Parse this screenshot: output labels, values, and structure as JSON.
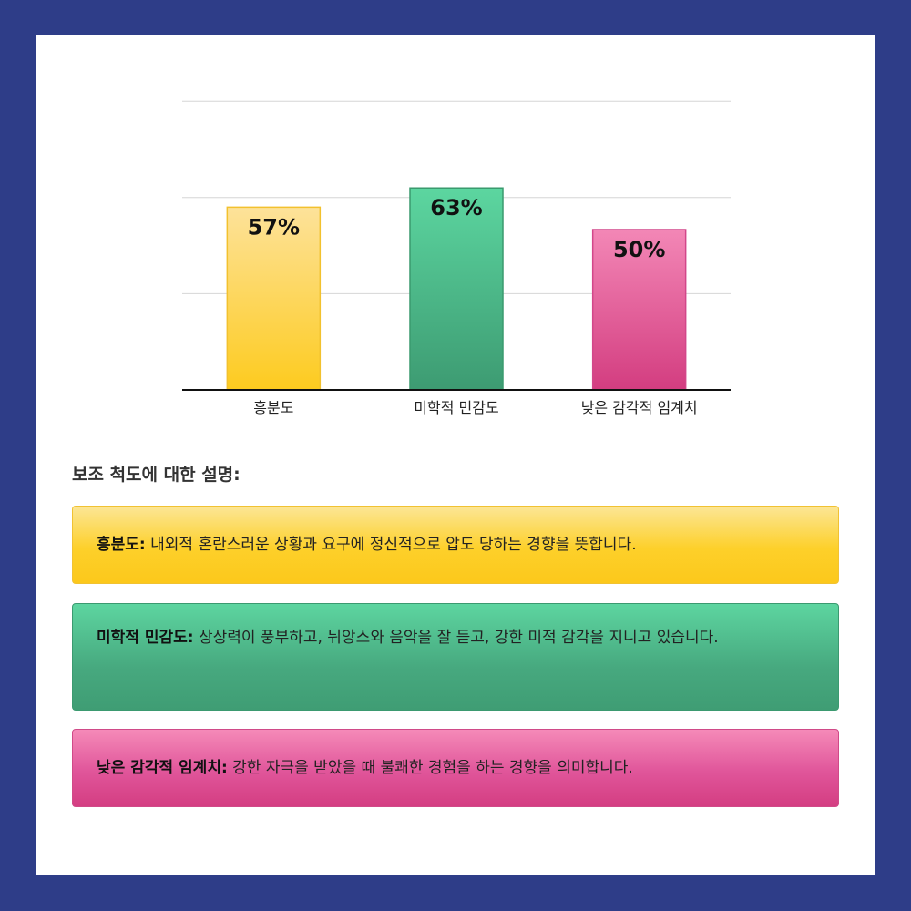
{
  "chart_data": {
    "type": "bar",
    "categories": [
      "흥분도",
      "미학적 민감도",
      "낮은 감각적 임계치"
    ],
    "values": [
      57,
      63,
      50
    ],
    "value_labels": [
      "57%",
      "63%",
      "50%"
    ],
    "ylim": [
      0,
      100
    ],
    "grid": true,
    "title": "",
    "xlabel": "",
    "ylabel": "",
    "colors": [
      {
        "top": "#fde29a",
        "bottom": "#fdcb1f",
        "stroke": "#f2c12e"
      },
      {
        "top": "#5cd6a0",
        "bottom": "#3d9b72",
        "stroke": "#3a9a6e"
      },
      {
        "top": "#f387b6",
        "bottom": "#d33d80",
        "stroke": "#d2478a"
      }
    ]
  },
  "section_title": "보조 척도에 대한 설명:",
  "descriptions": [
    {
      "term": "흥분도:",
      "text": " 내외적 혼란스러운 상황과 요구에 정신적으로 압도 당하는 경향을 뜻합니다."
    },
    {
      "term": "미학적 민감도:",
      "text": " 상상력이 풍부하고, 뉘앙스와 음악을 잘 듣고, 강한 미적 감각을 지니고 있습니다."
    },
    {
      "term": "낮은 감각적 임계치:",
      "text": " 강한 자극을 받았을 때 불쾌한 경험을 하는 경향을 의미합니다."
    }
  ],
  "colors": {
    "page_background": "#2e3d88",
    "card_background": "#ffffff"
  }
}
